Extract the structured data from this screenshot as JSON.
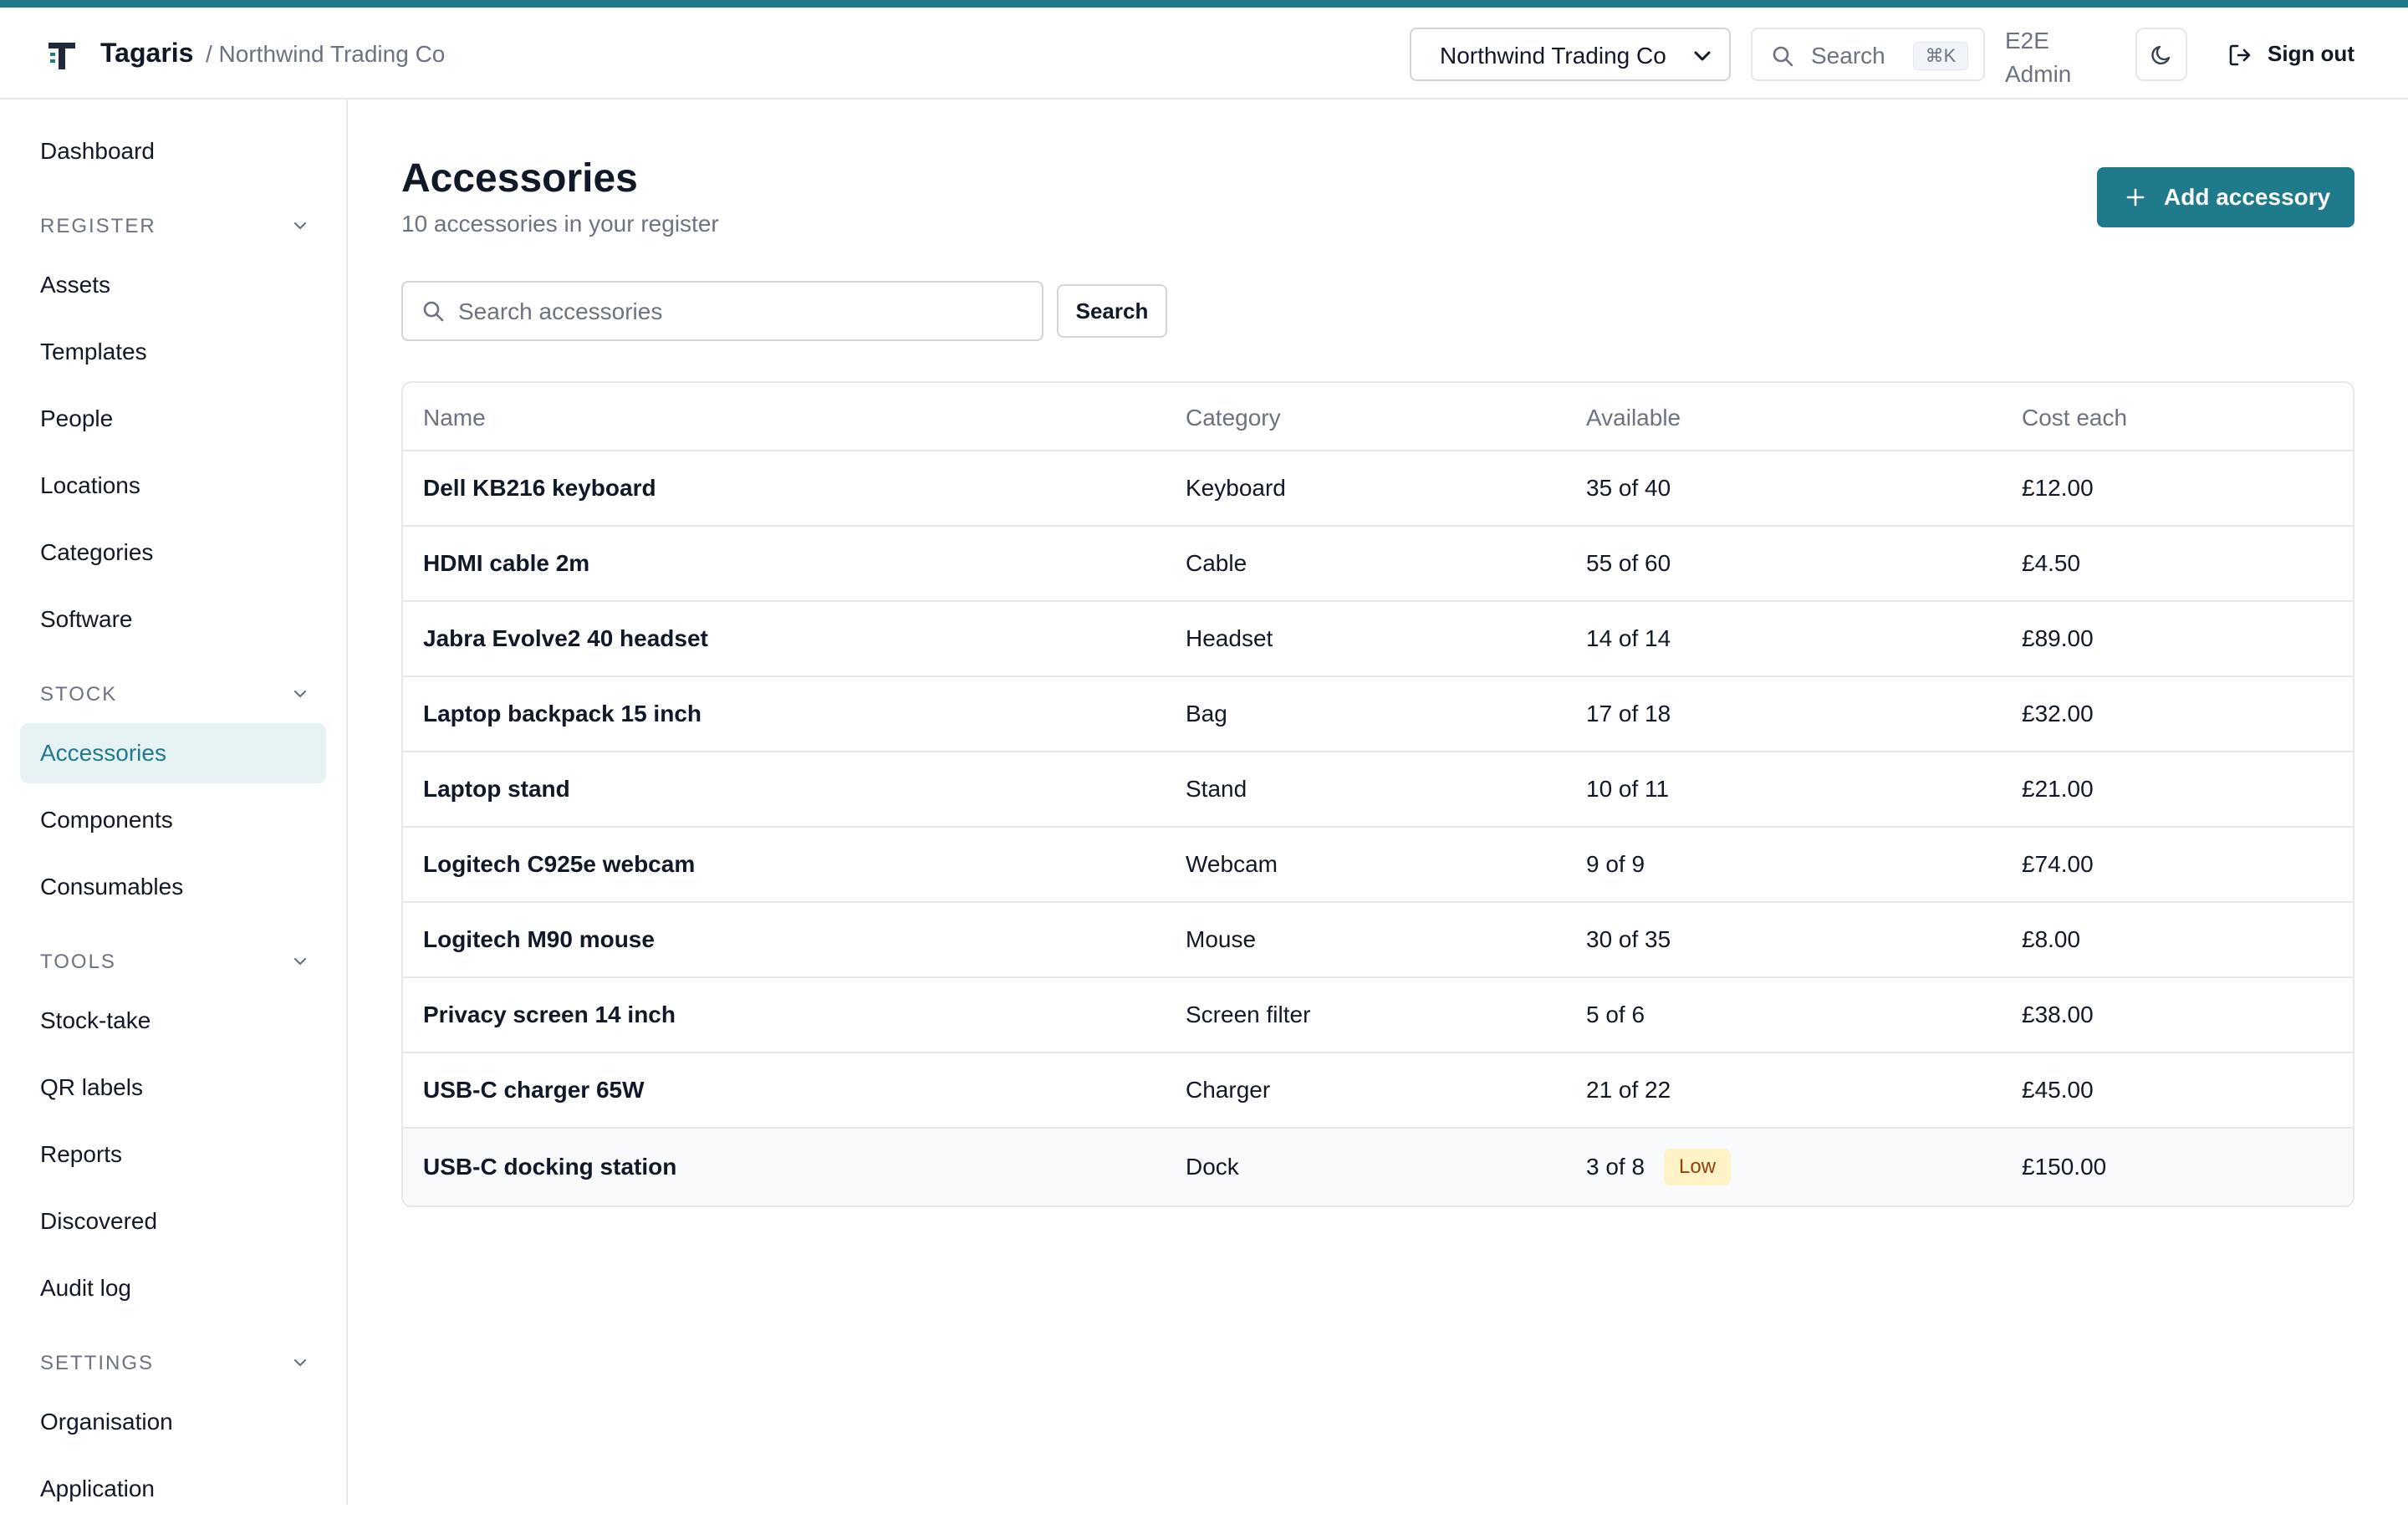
{
  "header": {
    "brand": "Tagaris",
    "org_breadcrumb": "/ Northwind Trading Co",
    "org_select_value": "Northwind Trading Co",
    "search_placeholder": "Search",
    "search_shortcut": "⌘K",
    "user_line1": "E2E",
    "user_line2": "Admin",
    "sign_out_label": "Sign out",
    "icons": {
      "logo": "tagaris-logo-icon",
      "search": "search-icon",
      "theme": "moon-icon",
      "sign_out": "sign-out-icon"
    }
  },
  "sidebar": {
    "dashboard": "Dashboard",
    "sections": [
      {
        "title": "REGISTER",
        "items": [
          "Assets",
          "Templates",
          "People",
          "Locations",
          "Categories",
          "Software"
        ]
      },
      {
        "title": "STOCK",
        "items": [
          "Accessories",
          "Components",
          "Consumables"
        ]
      },
      {
        "title": "TOOLS",
        "items": [
          "Stock-take",
          "QR labels",
          "Reports",
          "Discovered",
          "Audit log"
        ]
      },
      {
        "title": "SETTINGS",
        "items": [
          "Organisation",
          "Application"
        ]
      }
    ],
    "active_item": "Accessories"
  },
  "main": {
    "title": "Accessories",
    "subtitle": "10 accessories in your register",
    "add_button_label": "Add accessory",
    "search_placeholder": "Search accessories",
    "search_button_label": "Search",
    "table": {
      "columns": [
        "Name",
        "Category",
        "Available",
        "Cost each"
      ],
      "rows": [
        {
          "name": "Dell KB216 keyboard",
          "category": "Keyboard",
          "available": "35 of 40",
          "cost": "£12.00"
        },
        {
          "name": "HDMI cable 2m",
          "category": "Cable",
          "available": "55 of 60",
          "cost": "£4.50"
        },
        {
          "name": "Jabra Evolve2 40 headset",
          "category": "Headset",
          "available": "14 of 14",
          "cost": "£89.00"
        },
        {
          "name": "Laptop backpack 15 inch",
          "category": "Bag",
          "available": "17 of 18",
          "cost": "£32.00"
        },
        {
          "name": "Laptop stand",
          "category": "Stand",
          "available": "10 of 11",
          "cost": "£21.00"
        },
        {
          "name": "Logitech C925e webcam",
          "category": "Webcam",
          "available": "9 of 9",
          "cost": "£74.00"
        },
        {
          "name": "Logitech M90 mouse",
          "category": "Mouse",
          "available": "30 of 35",
          "cost": "£8.00"
        },
        {
          "name": "Privacy screen 14 inch",
          "category": "Screen filter",
          "available": "5 of 6",
          "cost": "£38.00"
        },
        {
          "name": "USB-C charger 65W",
          "category": "Charger",
          "available": "21 of 22",
          "cost": "£45.00"
        },
        {
          "name": "USB-C docking station",
          "category": "Dock",
          "available": "3 of 8",
          "cost": "£150.00",
          "badge": "Low"
        }
      ]
    }
  },
  "colors": {
    "accent": "#1f7a8c",
    "active_bg": "#e6f2f4",
    "low_badge_bg": "#fdf3c7",
    "low_badge_text": "#92400e"
  }
}
